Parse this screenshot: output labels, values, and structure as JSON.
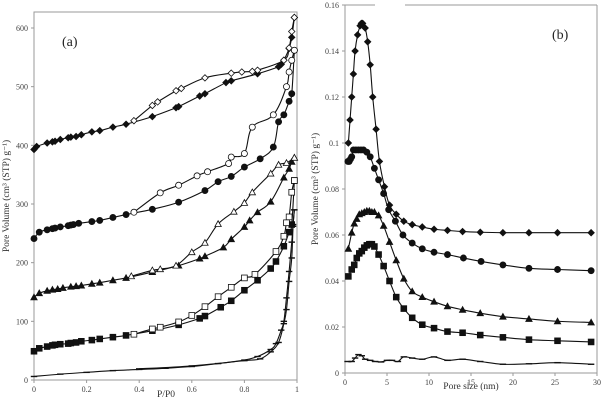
{
  "chart_data": [
    {
      "id": "a",
      "type": "line",
      "panel_label": "(a)",
      "title": "",
      "xlabel": "P/P0",
      "ylabel": "Pore Volume (cm³ (STP) g⁻¹)",
      "xlim": [
        0,
        1
      ],
      "ylim": [
        0,
        620
      ],
      "xticks": [
        0,
        0.2,
        0.4,
        0.6,
        0.8,
        1
      ],
      "xtick_labels": [
        "0",
        "0.2",
        "0.4",
        "0.6",
        "0.8",
        "1"
      ],
      "yticks": [
        0,
        100,
        200,
        300,
        400,
        500,
        600
      ],
      "ytick_labels": [
        "0",
        "100",
        "200",
        "300",
        "400",
        "500",
        "600"
      ],
      "grid": false,
      "legend": null,
      "series": [
        {
          "name": "diamond adsorption",
          "marker": "diamond",
          "filled": true,
          "x": [
            0.0,
            0.01,
            0.05,
            0.07,
            0.08,
            0.1,
            0.13,
            0.14,
            0.16,
            0.18,
            0.22,
            0.25,
            0.3,
            0.35,
            0.45,
            0.54,
            0.55,
            0.63,
            0.65,
            0.73,
            0.75,
            0.85,
            0.93,
            0.94,
            0.95,
            0.97,
            0.98,
            0.99
          ],
          "y": [
            393,
            398,
            404,
            406,
            407,
            410,
            413,
            414,
            415,
            418,
            423,
            425,
            431,
            436,
            449,
            464,
            466,
            484,
            488,
            507,
            510,
            522,
            534,
            538,
            545,
            565,
            584,
            618
          ]
        },
        {
          "name": "diamond desorption",
          "marker": "diamond",
          "filled": false,
          "x": [
            0.99,
            0.98,
            0.97,
            0.95,
            0.85,
            0.83,
            0.79,
            0.75,
            0.65,
            0.56,
            0.54,
            0.47,
            0.45,
            0.38
          ],
          "y": [
            618,
            594,
            566,
            545,
            528,
            526,
            525,
            523,
            515,
            497,
            493,
            474,
            468,
            442
          ]
        },
        {
          "name": "circle adsorption",
          "marker": "circle",
          "filled": true,
          "x": [
            0.0,
            0.02,
            0.05,
            0.07,
            0.08,
            0.1,
            0.13,
            0.14,
            0.15,
            0.17,
            0.22,
            0.25,
            0.3,
            0.35,
            0.45,
            0.55,
            0.65,
            0.7,
            0.75,
            0.8,
            0.86,
            0.91,
            0.93,
            0.95,
            0.97,
            0.98,
            0.99
          ],
          "y": [
            241,
            252,
            256,
            258,
            259,
            261,
            263,
            264,
            265,
            267,
            270,
            272,
            277,
            282,
            291,
            303,
            323,
            338,
            347,
            363,
            377,
            397,
            440,
            452,
            475,
            488,
            562
          ]
        },
        {
          "name": "circle desorption",
          "marker": "circle",
          "filled": false,
          "x": [
            0.99,
            0.98,
            0.97,
            0.96,
            0.91,
            0.83,
            0.8,
            0.75,
            0.74,
            0.66,
            0.62,
            0.55,
            0.48,
            0.38
          ],
          "y": [
            562,
            545,
            525,
            500,
            452,
            431,
            386,
            380,
            369,
            355,
            348,
            332,
            319,
            286
          ]
        },
        {
          "name": "triangle adsorption",
          "marker": "triangle",
          "filled": true,
          "x": [
            0.0,
            0.02,
            0.05,
            0.07,
            0.09,
            0.11,
            0.14,
            0.16,
            0.18,
            0.22,
            0.25,
            0.3,
            0.35,
            0.45,
            0.55,
            0.63,
            0.65,
            0.72,
            0.75,
            0.8,
            0.82,
            0.85,
            0.9,
            0.95,
            0.97,
            0.98,
            0.99
          ],
          "y": [
            141,
            148,
            152,
            154,
            155,
            157,
            159,
            160,
            161,
            164,
            166,
            170,
            174,
            184,
            195,
            207,
            211,
            226,
            240,
            261,
            272,
            286,
            304,
            345,
            360,
            372,
            379
          ]
        },
        {
          "name": "triangle desorption",
          "marker": "triangle",
          "filled": false,
          "x": [
            0.99,
            0.96,
            0.93,
            0.9,
            0.83,
            0.8,
            0.76,
            0.7,
            0.65,
            0.6,
            0.54,
            0.48,
            0.45,
            0.37
          ],
          "y": [
            379,
            370,
            367,
            352,
            320,
            302,
            287,
            266,
            234,
            218,
            195,
            189,
            187,
            177
          ]
        },
        {
          "name": "square adsorption",
          "marker": "square",
          "filled": true,
          "x": [
            0.0,
            0.02,
            0.05,
            0.07,
            0.08,
            0.1,
            0.13,
            0.14,
            0.16,
            0.18,
            0.22,
            0.25,
            0.3,
            0.35,
            0.45,
            0.55,
            0.63,
            0.65,
            0.71,
            0.75,
            0.8,
            0.85,
            0.9,
            0.92,
            0.95,
            0.97,
            0.98,
            0.99
          ],
          "y": [
            49,
            54,
            57,
            59,
            60,
            61,
            62,
            63,
            64,
            66,
            68,
            70,
            73,
            76,
            84,
            94,
            105,
            109,
            124,
            135,
            153,
            170,
            190,
            202,
            228,
            252,
            265,
            340
          ]
        },
        {
          "name": "square desorption",
          "marker": "square",
          "filled": false,
          "x": [
            0.99,
            0.98,
            0.97,
            0.96,
            0.95,
            0.92,
            0.84,
            0.8,
            0.75,
            0.7,
            0.65,
            0.6,
            0.55,
            0.48,
            0.45,
            0.38
          ],
          "y": [
            340,
            320,
            278,
            268,
            245,
            219,
            180,
            174,
            158,
            142,
            125,
            110,
            99,
            90,
            87,
            78
          ]
        },
        {
          "name": "dash adsorption",
          "marker": "dash",
          "filled": true,
          "x": [
            0.0,
            0.1,
            0.2,
            0.3,
            0.4,
            0.5,
            0.6,
            0.7,
            0.8,
            0.85,
            0.9,
            0.92,
            0.94,
            0.95,
            0.96,
            0.97,
            0.98,
            0.985,
            0.99
          ],
          "y": [
            6,
            10,
            13,
            16,
            18,
            20,
            23,
            28,
            34,
            40,
            52,
            62,
            85,
            100,
            140,
            185,
            235,
            265,
            290
          ]
        },
        {
          "name": "dash desorption",
          "marker": "dash",
          "filled": false,
          "x": [
            0.99,
            0.985,
            0.98,
            0.97,
            0.96,
            0.95,
            0.93,
            0.9,
            0.86,
            0.8,
            0.6,
            0.4
          ],
          "y": [
            290,
            262,
            208,
            168,
            120,
            96,
            64,
            48,
            36,
            33,
            24,
            19
          ]
        }
      ]
    },
    {
      "id": "b",
      "type": "line",
      "panel_label": "(b)",
      "title": "",
      "xlabel": "Pore size (nm)",
      "ylabel": "Pore Volume (cm³ (STP) g⁻¹)",
      "xlim": [
        0,
        30
      ],
      "ylim": [
        0,
        0.16
      ],
      "xticks": [
        0,
        5,
        10,
        15,
        20,
        25,
        30
      ],
      "xtick_labels": [
        "0",
        "5",
        "10",
        "15",
        "20",
        "25",
        "30"
      ],
      "yticks": [
        0,
        0.02,
        0.04,
        0.06,
        0.08,
        0.1,
        0.12,
        0.14,
        0.16
      ],
      "ytick_labels": [
        "0",
        "0.02",
        "0.04",
        "0.06",
        "0.08",
        "0.1",
        "0.12",
        "0.14",
        "0.16"
      ],
      "grid": false,
      "legend": null,
      "series": [
        {
          "name": "diamond",
          "marker": "diamond",
          "filled": true,
          "x": [
            0.4,
            0.6,
            0.8,
            1.0,
            1.2,
            1.5,
            1.8,
            1.95,
            2.1,
            2.4,
            2.7,
            3.0,
            3.3,
            3.7,
            4.1,
            4.7,
            5.3,
            6.1,
            7.0,
            8.0,
            9.2,
            10.6,
            12.2,
            14.0,
            16.1,
            18.8,
            21.9,
            25.3,
            29.3
          ],
          "y": [
            0.1,
            0.11,
            0.12,
            0.13,
            0.14,
            0.147,
            0.151,
            0.152,
            0.152,
            0.15,
            0.144,
            0.134,
            0.12,
            0.106,
            0.092,
            0.081,
            0.073,
            0.069,
            0.066,
            0.0645,
            0.0635,
            0.0625,
            0.062,
            0.0615,
            0.0612,
            0.061,
            0.061,
            0.061,
            0.061
          ]
        },
        {
          "name": "circle",
          "marker": "circle",
          "filled": true,
          "x": [
            0.35,
            0.5,
            0.65,
            0.8,
            1.0,
            1.3,
            1.6,
            1.9,
            2.2,
            2.6,
            3.0,
            3.5,
            4.0,
            4.6,
            5.2,
            6.0,
            6.9,
            8.0,
            9.2,
            10.6,
            12.2,
            14.1,
            16.2,
            18.8,
            21.9,
            25.3,
            29.3
          ],
          "y": [
            0.092,
            0.092,
            0.093,
            0.094,
            0.097,
            0.097,
            0.097,
            0.097,
            0.097,
            0.096,
            0.094,
            0.089,
            0.084,
            0.078,
            0.071,
            0.066,
            0.06,
            0.0565,
            0.054,
            0.0525,
            0.0515,
            0.05,
            0.0485,
            0.047,
            0.0455,
            0.045,
            0.0445
          ]
        },
        {
          "name": "triangle",
          "marker": "triangle",
          "filled": true,
          "x": [
            0.4,
            0.8,
            1.1,
            1.4,
            1.7,
            2.0,
            2.3,
            2.6,
            2.9,
            3.2,
            3.5,
            4.0,
            4.6,
            5.3,
            6.1,
            7.0,
            8.0,
            9.2,
            10.6,
            12.2,
            14.0,
            16.1,
            18.8,
            21.9,
            25.3,
            29.3
          ],
          "y": [
            0.054,
            0.061,
            0.065,
            0.067,
            0.069,
            0.0695,
            0.07,
            0.0705,
            0.0705,
            0.07,
            0.07,
            0.0685,
            0.064,
            0.057,
            0.049,
            0.041,
            0.0355,
            0.033,
            0.031,
            0.029,
            0.0275,
            0.026,
            0.0245,
            0.0235,
            0.0225,
            0.022
          ]
        },
        {
          "name": "square",
          "marker": "square",
          "filled": true,
          "x": [
            0.4,
            0.8,
            1.1,
            1.4,
            1.7,
            2.0,
            2.3,
            2.6,
            2.9,
            3.2,
            3.5,
            4.0,
            4.6,
            5.3,
            6.1,
            7.0,
            8.0,
            9.2,
            10.6,
            12.2,
            14.0,
            16.1,
            18.8,
            21.9,
            25.3,
            29.3
          ],
          "y": [
            0.042,
            0.045,
            0.047,
            0.05,
            0.052,
            0.053,
            0.0545,
            0.0555,
            0.056,
            0.056,
            0.055,
            0.0515,
            0.0465,
            0.04,
            0.033,
            0.028,
            0.024,
            0.021,
            0.0195,
            0.018,
            0.0175,
            0.0165,
            0.0155,
            0.0145,
            0.014,
            0.0135
          ]
        },
        {
          "name": "dash",
          "marker": "dash",
          "filled": false,
          "x": [
            0.3,
            0.8,
            1.2,
            1.6,
            2.0,
            2.4,
            3.0,
            3.6,
            4.3,
            5.0,
            5.6,
            6.3,
            7.0,
            8.0,
            9.2,
            10.6,
            12.2,
            14.0,
            16.1,
            18.8,
            21.9,
            25.3,
            29.3
          ],
          "y": [
            0.005,
            0.005,
            0.0065,
            0.008,
            0.0075,
            0.006,
            0.0055,
            0.005,
            0.0048,
            0.0055,
            0.0055,
            0.005,
            0.007,
            0.0065,
            0.006,
            0.007,
            0.0055,
            0.006,
            0.005,
            0.0038,
            0.004,
            0.0045,
            0.0038
          ]
        }
      ]
    }
  ]
}
